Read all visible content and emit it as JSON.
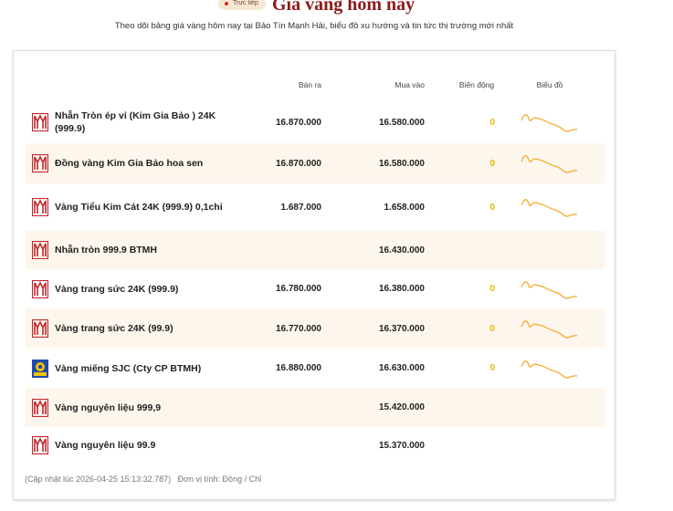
{
  "header": {
    "badge": "Trực tiếp",
    "title": "Giá vàng hôm nay",
    "subtitle": "Theo dõi bảng giá vàng hôm nay tại Bảo Tín Mạnh Hải, biểu đồ xu hướng và tin tức thị trường mới nhất"
  },
  "table": {
    "columns": [
      "Bán ra",
      "Mua vào",
      "Biến động",
      "Biểu đồ"
    ],
    "rows": [
      {
        "name": "Nhẫn Tròn ép vỉ (Kim Gia Bảo ) 24K (999.9)",
        "sell": "16.870.000",
        "buy": "16.580.000",
        "change": "0",
        "logo": "btmh"
      },
      {
        "name": "Đồng vàng Kim Gia Bảo hoa sen",
        "sell": "16.870.000",
        "buy": "16.580.000",
        "change": "0",
        "logo": "btmh"
      },
      {
        "name": "Vàng Tiểu Kim Cát 24K (999.9) 0,1chỉ",
        "sell": "1.687.000",
        "buy": "1.658.000",
        "change": "0",
        "logo": "btmh"
      },
      {
        "name": "Nhẫn tròn 999.9 BTMH",
        "buy": "16.430.000",
        "logo": "btmh"
      },
      {
        "name": "Vàng trang sức 24K (999.9)",
        "sell": "16.780.000",
        "buy": "16.380.000",
        "change": "0",
        "logo": "btmh"
      },
      {
        "name": "Vàng trang sức 24K (99.9)",
        "sell": "16.770.000",
        "buy": "16.370.000",
        "change": "0",
        "logo": "btmh"
      },
      {
        "name": "Vàng miếng SJC (Cty CP BTMH)",
        "sell": "16.880.000",
        "buy": "16.630.000",
        "change": "0",
        "logo": "sjc"
      },
      {
        "name": "Vàng nguyên liệu 999,9",
        "buy": "15.420.000",
        "logo": "btmh"
      },
      {
        "name": "Vàng nguyên liệu 99.9",
        "buy": "15.370.000",
        "logo": "btmh"
      }
    ]
  },
  "footer": {
    "updated": "(Cập nhật lúc 2026-04-25 15:13:32.787)",
    "unit": "Đơn vị tính: Đồng / Chỉ"
  }
}
